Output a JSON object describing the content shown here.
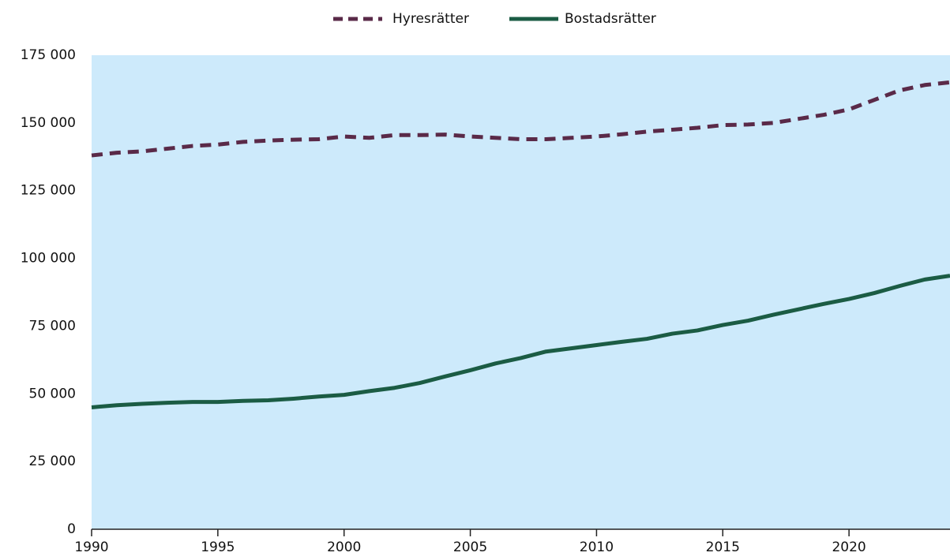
{
  "chart_data": {
    "type": "line",
    "x": [
      1990,
      1991,
      1992,
      1993,
      1994,
      1995,
      1996,
      1997,
      1998,
      1999,
      2000,
      2001,
      2002,
      2003,
      2004,
      2005,
      2006,
      2007,
      2008,
      2009,
      2010,
      2011,
      2012,
      2013,
      2014,
      2015,
      2016,
      2017,
      2018,
      2019,
      2020,
      2021,
      2022,
      2023,
      2024
    ],
    "series": [
      {
        "name": "Hyresrätter",
        "color": "#5a2a48",
        "dashed": true,
        "values": [
          138000,
          139000,
          139500,
          140500,
          141500,
          142000,
          143000,
          143500,
          143800,
          144000,
          145000,
          144500,
          145500,
          145500,
          145700,
          145000,
          144500,
          144000,
          144000,
          144500,
          145000,
          145800,
          146800,
          147500,
          148200,
          149200,
          149400,
          150000,
          151500,
          153000,
          155000,
          158500,
          162000,
          164000,
          165000
        ]
      },
      {
        "name": "Bostadsrätter",
        "color": "#1b5c44",
        "dashed": false,
        "values": [
          45000,
          45800,
          46300,
          46700,
          47000,
          47000,
          47400,
          47600,
          48200,
          49000,
          49600,
          51000,
          52200,
          54000,
          56400,
          58700,
          61200,
          63200,
          65600,
          66800,
          68000,
          69200,
          70300,
          72200,
          73400,
          75400,
          77000,
          79200,
          81200,
          83200,
          85000,
          87200,
          89800,
          92200,
          93600
        ]
      }
    ],
    "xlim": [
      1990,
      2024
    ],
    "xticks": [
      1990,
      1995,
      2000,
      2005,
      2010,
      2015,
      2020
    ],
    "ylim": [
      0,
      175000
    ],
    "yticks": [
      0,
      {
        "value": 25000,
        "label": "25 000"
      },
      {
        "value": 50000,
        "label": "50 000"
      },
      {
        "value": 75000,
        "label": "75 000"
      },
      {
        "value": 100000,
        "label": "100 000"
      },
      {
        "value": 125000,
        "label": "125 000"
      },
      {
        "value": 150000,
        "label": "150 000"
      },
      {
        "value": 175000,
        "label": "175 000"
      }
    ],
    "plot_background": "#cdeafb",
    "legend": "top"
  }
}
